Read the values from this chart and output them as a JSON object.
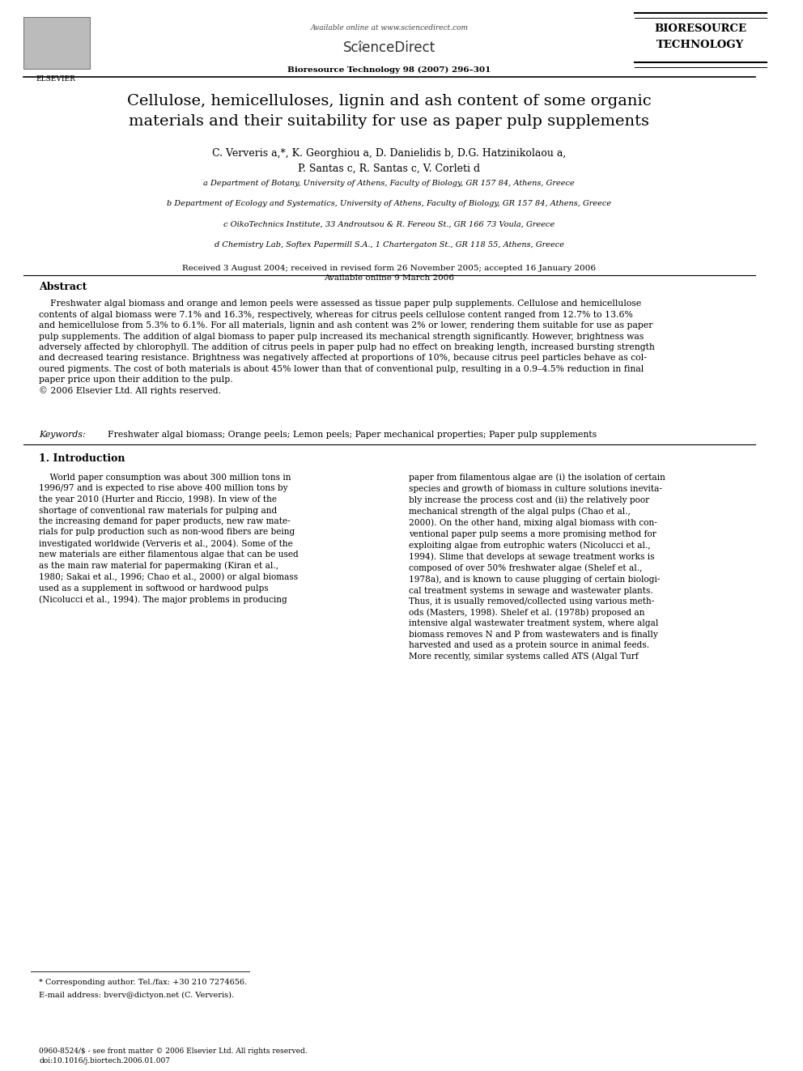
{
  "page_width": 9.92,
  "page_height": 13.23,
  "bg_color": "#ffffff",
  "header": {
    "available_online": "Available online at www.sciencedirect.com",
    "sciencedirect": "ScienceDirect",
    "journal": "Bioresource Technology 98 (2007) 296–301",
    "bioresource_line1": "BIORESOURCE",
    "bioresource_line2": "TECHNOLOGY"
  },
  "title": "Cellulose, hemicelluloses, lignin and ash content of some organic\nmaterials and their suitability for use as paper pulp supplements",
  "authors": "C. Ververis a,*, K. Georghiou a, D. Danielidis b, D.G. Hatzinikolaou a,\nP. Santas c, R. Santas c, V. Corleti d",
  "affiliations": [
    "a Department of Botany, University of Athens, Faculty of Biology, GR 157 84, Athens, Greece",
    "b Department of Ecology and Systematics, University of Athens, Faculty of Biology, GR 157 84, Athens, Greece",
    "c OikoTechnics Institute, 33 Androutsou & R. Fereou St., GR 166 73 Voula, Greece",
    "d Chemistry Lab, Softex Papermill S.A., 1 Chartergaton St., GR 118 55, Athens, Greece"
  ],
  "dates": "Received 3 August 2004; received in revised form 26 November 2005; accepted 16 January 2006\nAvailable online 9 March 2006",
  "abstract_title": "Abstract",
  "abstract_text": "    Freshwater algal biomass and orange and lemon peels were assessed as tissue paper pulp supplements. Cellulose and hemicellulose\ncontents of algal biomass were 7.1% and 16.3%, respectively, whereas for citrus peels cellulose content ranged from 12.7% to 13.6%\nand hemicellulose from 5.3% to 6.1%. For all materials, lignin and ash content was 2% or lower, rendering them suitable for use as paper\npulp supplements. The addition of algal biomass to paper pulp increased its mechanical strength significantly. However, brightness was\nadversely affected by chlorophyll. The addition of citrus peels in paper pulp had no effect on breaking length, increased bursting strength\nand decreased tearing resistance. Brightness was negatively affected at proportions of 10%, because citrus peel particles behave as col-\noured pigments. The cost of both materials is about 45% lower than that of conventional pulp, resulting in a 0.9–4.5% reduction in final\npaper price upon their addition to the pulp.\n© 2006 Elsevier Ltd. All rights reserved.",
  "keywords_label": "Keywords:",
  "keywords": "Freshwater algal biomass; Orange peels; Lemon peels; Paper mechanical properties; Paper pulp supplements",
  "section1_title": "1. Introduction",
  "section1_col1": "    World paper consumption was about 300 million tons in\n1996/97 and is expected to rise above 400 million tons by\nthe year 2010 (Hurter and Riccio, 1998). In view of the\nshortage of conventional raw materials for pulping and\nthe increasing demand for paper products, new raw mate-\nrials for pulp production such as non-wood fibers are being\ninvestigated worldwide (Ververis et al., 2004). Some of the\nnew materials are either filamentous algae that can be used\nas the main raw material for papermaking (Kiran et al.,\n1980; Sakai et al., 1996; Chao et al., 2000) or algal biomass\nused as a supplement in softwood or hardwood pulps\n(Nicolucci et al., 1994). The major problems in producing",
  "section1_col2": "paper from filamentous algae are (i) the isolation of certain\nspecies and growth of biomass in culture solutions inevita-\nbly increase the process cost and (ii) the relatively poor\nmechanical strength of the algal pulps (Chao et al.,\n2000). On the other hand, mixing algal biomass with con-\nventional paper pulp seems a more promising method for\nexploiting algae from eutrophic waters (Nicolucci et al.,\n1994). Slime that develops at sewage treatment works is\ncomposed of over 50% freshwater algae (Shelef et al.,\n1978a), and is known to cause plugging of certain biologi-\ncal treatment systems in sewage and wastewater plants.\nThus, it is usually removed/collected using various meth-\nods (Masters, 1998). Shelef et al. (1978b) proposed an\nintensive algal wastewater treatment system, where algal\nbiomass removes N and P from wastewaters and is finally\nharvested and used as a protein source in animal feeds.\nMore recently, similar systems called ATS (Algal Turf",
  "footnote_star": "* Corresponding author. Tel./fax: +30 210 7274656.",
  "footnote_email": "E-mail address: bverv@dictyon.net (C. Ververis).",
  "footer_left": "0960-8524/$ - see front matter © 2006 Elsevier Ltd. All rights reserved.\ndoi:10.1016/j.biortech.2006.01.007"
}
